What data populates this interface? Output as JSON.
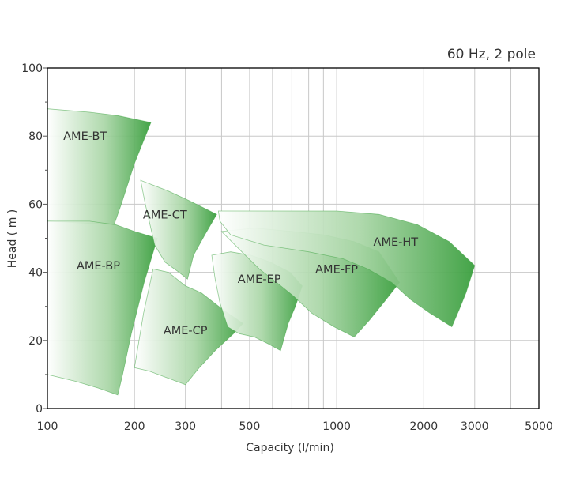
{
  "chart_data": {
    "type": "area",
    "title": "",
    "annotation": "60 Hz, 2 pole",
    "xlabel": "Capacity (l/min)",
    "ylabel": "Head ( m )",
    "x_scale": "log",
    "xlim": [
      100,
      5000
    ],
    "ylim": [
      0,
      100
    ],
    "x_ticks": [
      100,
      200,
      300,
      500,
      1000,
      2000,
      3000,
      5000
    ],
    "x_minor_grid": [
      400,
      600,
      700,
      800,
      900,
      4000
    ],
    "y_ticks": [
      0,
      20,
      40,
      60,
      80,
      100
    ],
    "grid": true,
    "colors": {
      "region_light": "#ffffff",
      "region_dark": "#3a9f3e",
      "region_edge": "#4aa84d",
      "grid": "#c8c8c8",
      "frame": "#000000"
    },
    "series": [
      {
        "name": "AME-BT",
        "label_at": [
          135,
          80
        ],
        "polygon": [
          [
            100,
            88
          ],
          [
            140,
            87
          ],
          [
            175,
            86
          ],
          [
            228,
            84
          ],
          [
            200,
            72
          ],
          [
            180,
            60
          ],
          [
            170,
            54
          ],
          [
            100,
            55
          ]
        ]
      },
      {
        "name": "AME-BP",
        "label_at": [
          150,
          42
        ],
        "polygon": [
          [
            100,
            55
          ],
          [
            140,
            55
          ],
          [
            172,
            54
          ],
          [
            200,
            52
          ],
          [
            240,
            50
          ],
          [
            216,
            37
          ],
          [
            195,
            22
          ],
          [
            182,
            10
          ],
          [
            175,
            4
          ],
          [
            150,
            6
          ],
          [
            125,
            8
          ],
          [
            100,
            10
          ]
        ]
      },
      {
        "name": "AME-CT",
        "label_at": [
          255,
          57
        ],
        "polygon": [
          [
            210,
            67
          ],
          [
            260,
            64
          ],
          [
            310,
            61
          ],
          [
            385,
            57
          ],
          [
            350,
            51
          ],
          [
            320,
            45
          ],
          [
            305,
            38
          ],
          [
            285,
            40
          ],
          [
            255,
            43
          ],
          [
            235,
            48
          ],
          [
            218,
            60
          ]
        ]
      },
      {
        "name": "AME-CP",
        "label_at": [
          300,
          23
        ],
        "polygon": [
          [
            232,
            41
          ],
          [
            262,
            40
          ],
          [
            300,
            36
          ],
          [
            340,
            34
          ],
          [
            405,
            29
          ],
          [
            475,
            25
          ],
          [
            440,
            22
          ],
          [
            380,
            17
          ],
          [
            335,
            12
          ],
          [
            300,
            7
          ],
          [
            260,
            9
          ],
          [
            225,
            11
          ],
          [
            200,
            12
          ],
          [
            215,
            28
          ]
        ]
      },
      {
        "name": "AME-EP",
        "label_at": [
          540,
          38
        ],
        "polygon": [
          [
            370,
            45
          ],
          [
            430,
            46
          ],
          [
            505,
            45
          ],
          [
            590,
            43
          ],
          [
            690,
            40
          ],
          [
            760,
            36
          ],
          [
            720,
            30
          ],
          [
            680,
            25
          ],
          [
            640,
            17
          ],
          [
            580,
            19
          ],
          [
            520,
            21
          ],
          [
            460,
            22
          ],
          [
            420,
            24
          ],
          [
            395,
            31
          ],
          [
            380,
            38
          ]
        ]
      },
      {
        "name": "AME-FP",
        "label_at": [
          1000,
          41
        ],
        "polygon": [
          [
            400,
            52
          ],
          [
            520,
            53
          ],
          [
            700,
            52
          ],
          [
            900,
            51
          ],
          [
            1150,
            49
          ],
          [
            1400,
            46
          ],
          [
            1650,
            37
          ],
          [
            1450,
            31
          ],
          [
            1300,
            26
          ],
          [
            1150,
            21
          ],
          [
            980,
            24
          ],
          [
            820,
            28
          ],
          [
            710,
            33
          ],
          [
            620,
            37
          ],
          [
            540,
            41
          ],
          [
            470,
            46
          ]
        ]
      },
      {
        "name": "AME-HT",
        "label_at": [
          1600,
          49
        ],
        "polygon": [
          [
            390,
            58
          ],
          [
            500,
            58
          ],
          [
            700,
            58
          ],
          [
            1000,
            58
          ],
          [
            1400,
            57
          ],
          [
            1900,
            54
          ],
          [
            2450,
            49
          ],
          [
            3000,
            42
          ],
          [
            2800,
            34
          ],
          [
            2650,
            29
          ],
          [
            2500,
            24
          ],
          [
            2100,
            28
          ],
          [
            1800,
            32
          ],
          [
            1550,
            37
          ],
          [
            1280,
            41
          ],
          [
            1050,
            44
          ],
          [
            800,
            46
          ],
          [
            560,
            48
          ],
          [
            430,
            51
          ],
          [
            395,
            55
          ]
        ]
      }
    ]
  }
}
